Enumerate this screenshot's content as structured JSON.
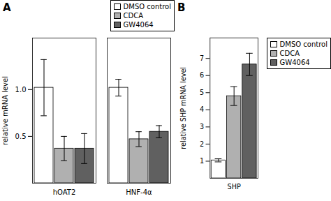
{
  "chart_data": [
    {
      "type": "bar",
      "title": "A",
      "categories": [
        "hOAT2",
        "HNF-4α"
      ],
      "series": [
        {
          "name": "DMSO control",
          "color": "#ffffff",
          "values": [
            1.02,
            1.02
          ],
          "errors": [
            0.3,
            0.09
          ]
        },
        {
          "name": "CDCA",
          "color": "#b0b0b0",
          "values": [
            0.37,
            0.47
          ],
          "errors": [
            0.13,
            0.08
          ]
        },
        {
          "name": "GW4064",
          "color": "#606060",
          "values": [
            0.37,
            0.55
          ],
          "errors": [
            0.16,
            0.065
          ]
        }
      ],
      "ylabel": "relative mRNA level",
      "ylim": [
        0,
        1.55
      ],
      "yticks": [
        0.5,
        {
          "value": 1.0,
          "label": "1.0"
        }
      ],
      "legend": "upper right"
    },
    {
      "type": "bar",
      "title": "B",
      "categories": [
        "SHP"
      ],
      "series": [
        {
          "name": "DMSO control",
          "color": "#ffffff",
          "values": [
            1.05
          ],
          "errors": [
            0.09
          ]
        },
        {
          "name": "CDCA",
          "color": "#b0b0b0",
          "values": [
            4.8
          ],
          "errors": [
            0.55
          ]
        },
        {
          "name": "GW4064",
          "color": "#606060",
          "values": [
            6.65
          ],
          "errors": [
            0.65
          ]
        }
      ],
      "ylabel": "relative SHP mRNA level",
      "ylim": [
        0,
        8.2
      ],
      "yticks": [
        1,
        2,
        3,
        4,
        5,
        6,
        7
      ],
      "legend": "right"
    }
  ]
}
